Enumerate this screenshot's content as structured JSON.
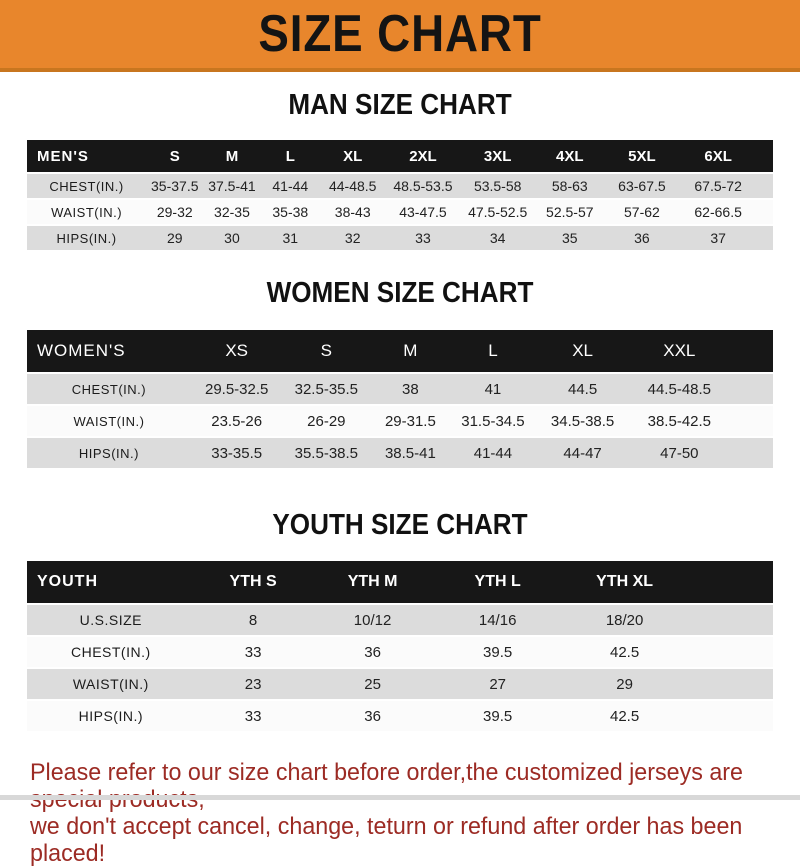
{
  "banner": {
    "title": "SIZE CHART"
  },
  "chart_data": [
    {
      "type": "table",
      "title": "MAN SIZE CHART",
      "corner_label": "MEN'S",
      "columns": [
        "S",
        "M",
        "L",
        "XL",
        "2XL",
        "3XL",
        "4XL",
        "5XL",
        "6XL"
      ],
      "rows": [
        {
          "label": "CHEST(IN.)",
          "values": [
            "35-37.5",
            "37.5-41",
            "41-44",
            "44-48.5",
            "48.5-53.5",
            "53.5-58",
            "58-63",
            "63-67.5",
            "67.5-72"
          ]
        },
        {
          "label": "WAIST(IN.)",
          "values": [
            "29-32",
            "32-35",
            "35-38",
            "38-43",
            "43-47.5",
            "47.5-52.5",
            "52.5-57",
            "57-62",
            "62-66.5"
          ]
        },
        {
          "label": "HIPS(IN.)",
          "values": [
            "29",
            "30",
            "31",
            "32",
            "33",
            "34",
            "35",
            "36",
            "37"
          ]
        }
      ]
    },
    {
      "type": "table",
      "title": "WOMEN SIZE CHART",
      "corner_label": "WOMEN'S",
      "columns": [
        "XS",
        "S",
        "M",
        "L",
        "XL",
        "XXL"
      ],
      "rows": [
        {
          "label": "CHEST(IN.)",
          "values": [
            "29.5-32.5",
            "32.5-35.5",
            "38",
            "41",
            "44.5",
            "44.5-48.5"
          ]
        },
        {
          "label": "WAIST(IN.)",
          "values": [
            "23.5-26",
            "26-29",
            "29-31.5",
            "31.5-34.5",
            "34.5-38.5",
            "38.5-42.5"
          ]
        },
        {
          "label": "HIPS(IN.)",
          "values": [
            "33-35.5",
            "35.5-38.5",
            "38.5-41",
            "41-44",
            "44-47",
            "47-50"
          ]
        }
      ]
    },
    {
      "type": "table",
      "title": "YOUTH SIZE CHART",
      "corner_label": "YOUTH",
      "columns": [
        "YTH S",
        "YTH M",
        "YTH L",
        "YTH XL"
      ],
      "rows": [
        {
          "label": "U.S.SIZE",
          "values": [
            "8",
            "10/12",
            "14/16",
            "18/20"
          ]
        },
        {
          "label": "CHEST(IN.)",
          "values": [
            "33",
            "36",
            "39.5",
            "42.5"
          ]
        },
        {
          "label": "WAIST(IN.)",
          "values": [
            "23",
            "25",
            "27",
            "29"
          ]
        },
        {
          "label": "HIPS(IN.)",
          "values": [
            "33",
            "36",
            "39.5",
            "42.5"
          ]
        }
      ]
    }
  ],
  "footer_note": {
    "lines": [
      "Please refer to our size chart before order,the customized jerseys are special products,",
      "we don't accept cancel, change, teturn or refund after order has been placed!"
    ]
  },
  "colors": {
    "banner_bg": "#E8862C",
    "banner_edge": "#C8761F",
    "header_bar": "#171717",
    "row_gray": "#DCDCDC",
    "row_white": "#FBFBFB",
    "note_red": "#9C2B24"
  }
}
